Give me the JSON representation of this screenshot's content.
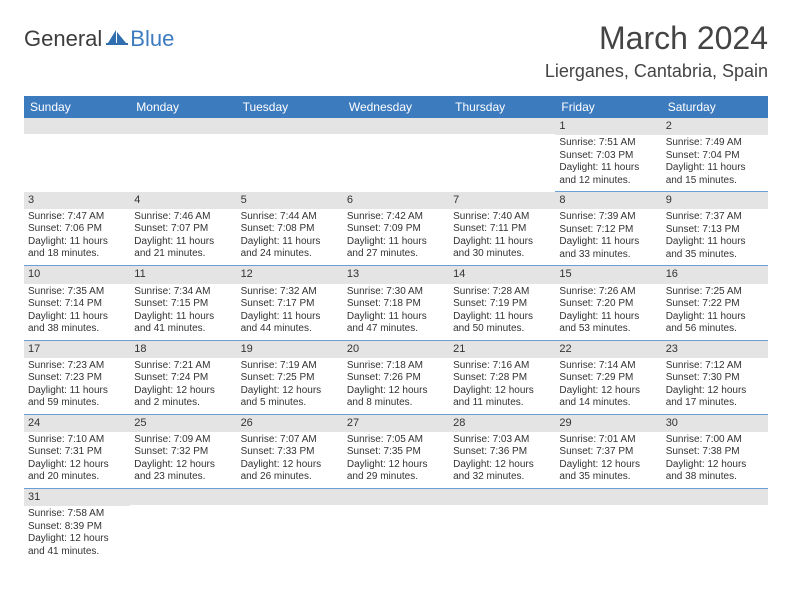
{
  "logo": {
    "text1": "General",
    "text2": "Blue"
  },
  "title": "March 2024",
  "location": "Lierganes, Cantabria, Spain",
  "weekday_header_bg": "#3d7bbf",
  "weekday_header_fg": "#ffffff",
  "daynum_bg": "#e4e4e4",
  "cell_border_color": "#6a9fd4",
  "weekdays": [
    "Sunday",
    "Monday",
    "Tuesday",
    "Wednesday",
    "Thursday",
    "Friday",
    "Saturday"
  ],
  "weeks": [
    [
      null,
      null,
      null,
      null,
      null,
      {
        "n": "1",
        "sunrise": "7:51 AM",
        "sunset": "7:03 PM",
        "daylight": "11 hours and 12 minutes."
      },
      {
        "n": "2",
        "sunrise": "7:49 AM",
        "sunset": "7:04 PM",
        "daylight": "11 hours and 15 minutes."
      }
    ],
    [
      {
        "n": "3",
        "sunrise": "7:47 AM",
        "sunset": "7:06 PM",
        "daylight": "11 hours and 18 minutes."
      },
      {
        "n": "4",
        "sunrise": "7:46 AM",
        "sunset": "7:07 PM",
        "daylight": "11 hours and 21 minutes."
      },
      {
        "n": "5",
        "sunrise": "7:44 AM",
        "sunset": "7:08 PM",
        "daylight": "11 hours and 24 minutes."
      },
      {
        "n": "6",
        "sunrise": "7:42 AM",
        "sunset": "7:09 PM",
        "daylight": "11 hours and 27 minutes."
      },
      {
        "n": "7",
        "sunrise": "7:40 AM",
        "sunset": "7:11 PM",
        "daylight": "11 hours and 30 minutes."
      },
      {
        "n": "8",
        "sunrise": "7:39 AM",
        "sunset": "7:12 PM",
        "daylight": "11 hours and 33 minutes."
      },
      {
        "n": "9",
        "sunrise": "7:37 AM",
        "sunset": "7:13 PM",
        "daylight": "11 hours and 35 minutes."
      }
    ],
    [
      {
        "n": "10",
        "sunrise": "7:35 AM",
        "sunset": "7:14 PM",
        "daylight": "11 hours and 38 minutes."
      },
      {
        "n": "11",
        "sunrise": "7:34 AM",
        "sunset": "7:15 PM",
        "daylight": "11 hours and 41 minutes."
      },
      {
        "n": "12",
        "sunrise": "7:32 AM",
        "sunset": "7:17 PM",
        "daylight": "11 hours and 44 minutes."
      },
      {
        "n": "13",
        "sunrise": "7:30 AM",
        "sunset": "7:18 PM",
        "daylight": "11 hours and 47 minutes."
      },
      {
        "n": "14",
        "sunrise": "7:28 AM",
        "sunset": "7:19 PM",
        "daylight": "11 hours and 50 minutes."
      },
      {
        "n": "15",
        "sunrise": "7:26 AM",
        "sunset": "7:20 PM",
        "daylight": "11 hours and 53 minutes."
      },
      {
        "n": "16",
        "sunrise": "7:25 AM",
        "sunset": "7:22 PM",
        "daylight": "11 hours and 56 minutes."
      }
    ],
    [
      {
        "n": "17",
        "sunrise": "7:23 AM",
        "sunset": "7:23 PM",
        "daylight": "11 hours and 59 minutes."
      },
      {
        "n": "18",
        "sunrise": "7:21 AM",
        "sunset": "7:24 PM",
        "daylight": "12 hours and 2 minutes."
      },
      {
        "n": "19",
        "sunrise": "7:19 AM",
        "sunset": "7:25 PM",
        "daylight": "12 hours and 5 minutes."
      },
      {
        "n": "20",
        "sunrise": "7:18 AM",
        "sunset": "7:26 PM",
        "daylight": "12 hours and 8 minutes."
      },
      {
        "n": "21",
        "sunrise": "7:16 AM",
        "sunset": "7:28 PM",
        "daylight": "12 hours and 11 minutes."
      },
      {
        "n": "22",
        "sunrise": "7:14 AM",
        "sunset": "7:29 PM",
        "daylight": "12 hours and 14 minutes."
      },
      {
        "n": "23",
        "sunrise": "7:12 AM",
        "sunset": "7:30 PM",
        "daylight": "12 hours and 17 minutes."
      }
    ],
    [
      {
        "n": "24",
        "sunrise": "7:10 AM",
        "sunset": "7:31 PM",
        "daylight": "12 hours and 20 minutes."
      },
      {
        "n": "25",
        "sunrise": "7:09 AM",
        "sunset": "7:32 PM",
        "daylight": "12 hours and 23 minutes."
      },
      {
        "n": "26",
        "sunrise": "7:07 AM",
        "sunset": "7:33 PM",
        "daylight": "12 hours and 26 minutes."
      },
      {
        "n": "27",
        "sunrise": "7:05 AM",
        "sunset": "7:35 PM",
        "daylight": "12 hours and 29 minutes."
      },
      {
        "n": "28",
        "sunrise": "7:03 AM",
        "sunset": "7:36 PM",
        "daylight": "12 hours and 32 minutes."
      },
      {
        "n": "29",
        "sunrise": "7:01 AM",
        "sunset": "7:37 PM",
        "daylight": "12 hours and 35 minutes."
      },
      {
        "n": "30",
        "sunrise": "7:00 AM",
        "sunset": "7:38 PM",
        "daylight": "12 hours and 38 minutes."
      }
    ],
    [
      {
        "n": "31",
        "sunrise": "7:58 AM",
        "sunset": "8:39 PM",
        "daylight": "12 hours and 41 minutes."
      },
      null,
      null,
      null,
      null,
      null,
      null
    ]
  ],
  "labels": {
    "sunrise": "Sunrise:",
    "sunset": "Sunset:",
    "daylight": "Daylight:"
  }
}
